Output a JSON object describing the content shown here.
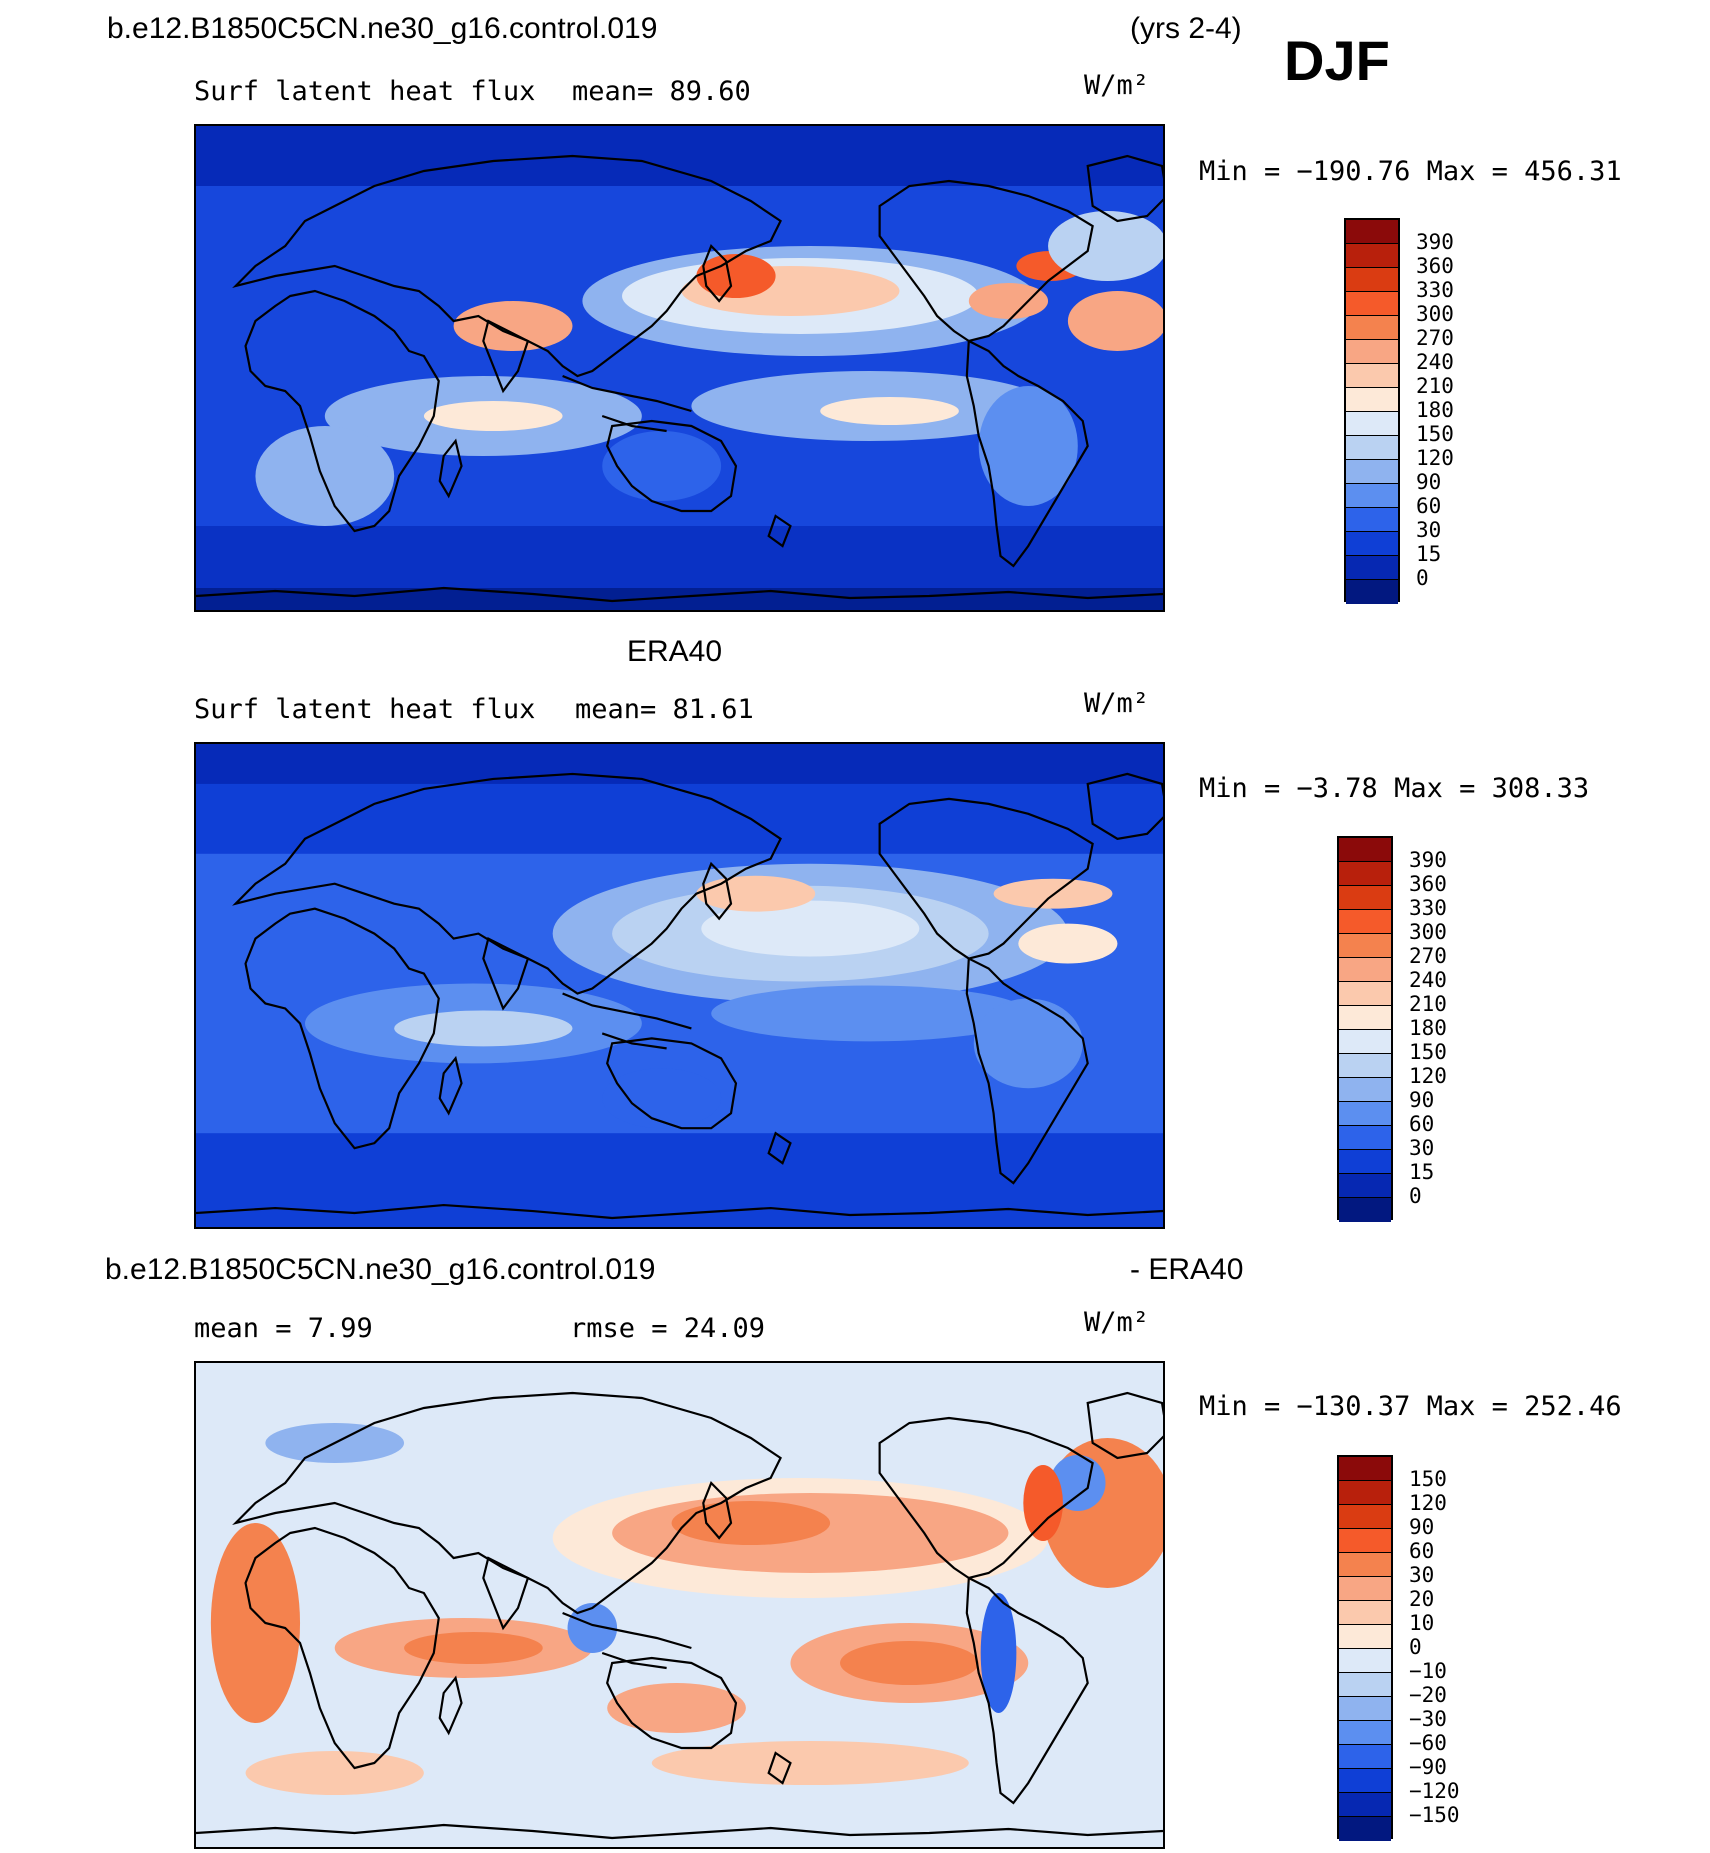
{
  "header": {
    "case_name": "b.e12.B1850C5CN.ne30_g16.control.019",
    "years": "(yrs 2-4)",
    "season": "DJF"
  },
  "panels": [
    {
      "id": "model",
      "subtitle_left": "Surf latent heat flux",
      "mean_text": "mean=   89.60",
      "units": "W/m²",
      "minmax": "Min = −190.76 Max = 456.31",
      "colorbar": {
        "labels": [
          "390",
          "360",
          "330",
          "300",
          "270",
          "240",
          "210",
          "180",
          "150",
          "120",
          "90",
          "60",
          "30",
          "15",
          "0"
        ],
        "colors": [
          "#8b0a0a",
          "#b8200c",
          "#da3c12",
          "#f55a2a",
          "#f4824e",
          "#f8a684",
          "#fbc9ad",
          "#fde9d8",
          "#dde9f8",
          "#bad2f2",
          "#8fb3ef",
          "#5c8ff0",
          "#2d63ea",
          "#0f3fd6",
          "#0628b2",
          "#021880"
        ]
      }
    },
    {
      "id": "obs",
      "title": "ERA40",
      "subtitle_left": "Surf latent heat flux",
      "mean_text": "mean=   81.61",
      "units": "W/m²",
      "minmax": "Min =   −3.78 Max = 308.33",
      "colorbar": {
        "labels": [
          "390",
          "360",
          "330",
          "300",
          "270",
          "240",
          "210",
          "180",
          "150",
          "120",
          "90",
          "60",
          "30",
          "15",
          "0"
        ],
        "colors": [
          "#8b0a0a",
          "#b8200c",
          "#da3c12",
          "#f55a2a",
          "#f4824e",
          "#f8a684",
          "#fbc9ad",
          "#fde9d8",
          "#dde9f8",
          "#bad2f2",
          "#8fb3ef",
          "#5c8ff0",
          "#2d63ea",
          "#0f3fd6",
          "#0628b2",
          "#021880"
        ]
      }
    },
    {
      "id": "diff",
      "title_left": "b.e12.B1850C5CN.ne30_g16.control.019",
      "title_right": "- ERA40",
      "mean_text": "mean =    7.99",
      "rmse_text": "rmse =   24.09",
      "units": "W/m²",
      "minmax": "Min = −130.37 Max = 252.46",
      "colorbar": {
        "labels": [
          "150",
          "120",
          "90",
          "60",
          "30",
          "20",
          "10",
          "0",
          "−10",
          "−20",
          "−30",
          "−60",
          "−90",
          "−120",
          "−150"
        ],
        "colors": [
          "#8b0a0a",
          "#b8200c",
          "#da3c12",
          "#f55a2a",
          "#f4824e",
          "#f8a684",
          "#fbc9ad",
          "#fde9d8",
          "#dde9f8",
          "#bad2f2",
          "#8fb3ef",
          "#5c8ff0",
          "#2d63ea",
          "#0f3fd6",
          "#0628b2",
          "#021880"
        ]
      }
    }
  ]
}
